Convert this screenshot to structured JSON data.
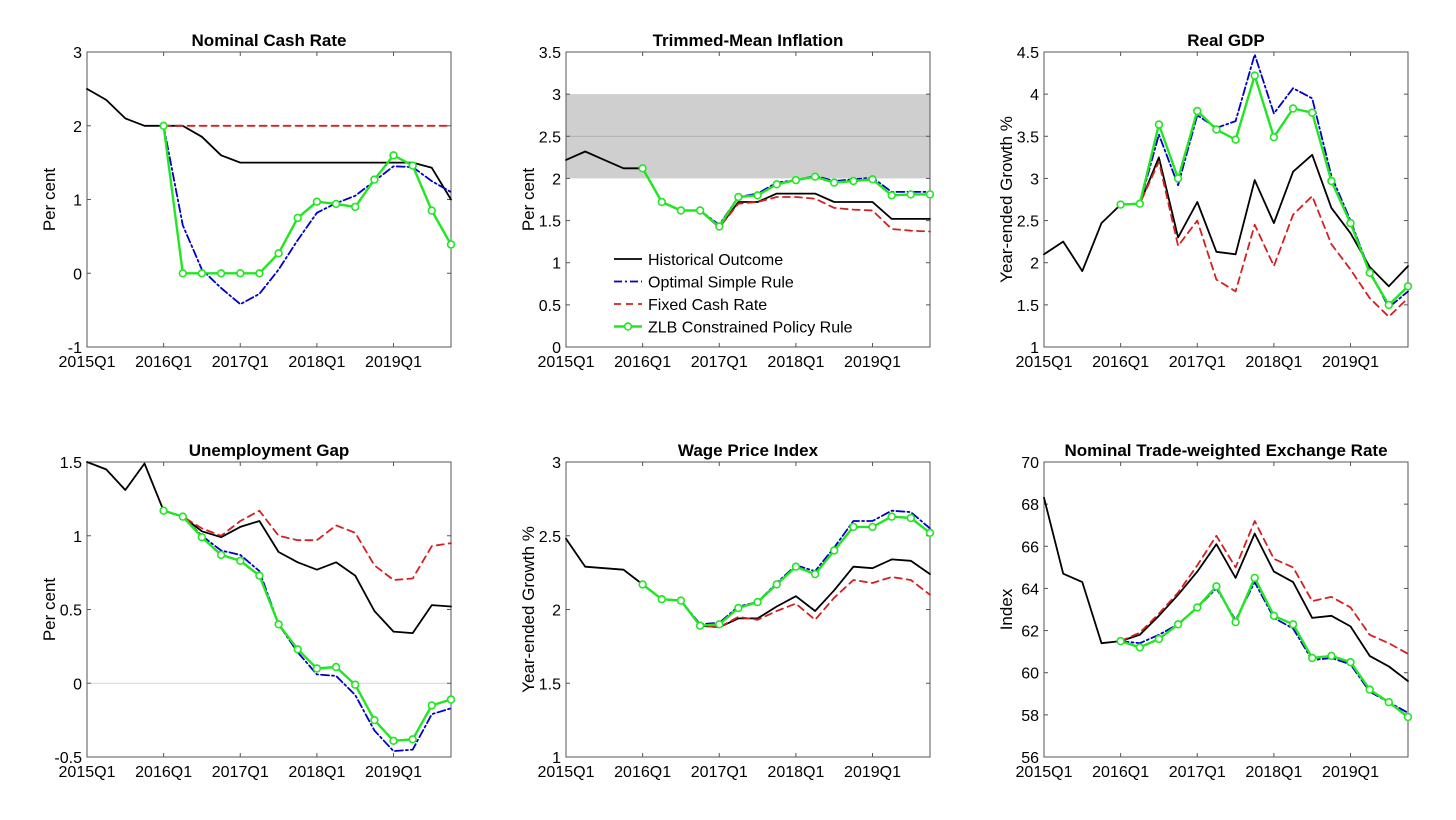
{
  "colors": {
    "historical": "#000000",
    "optimal": "#0000c8",
    "fixed": "#d42020",
    "zlb": "#22e622",
    "band": "#cfcfcf",
    "axis": "#555555"
  },
  "legend": {
    "placement": "inside-panel-2-lower-left",
    "entries": [
      "Historical Outcome",
      "Optimal Simple Rule",
      "Fixed Cash Rate",
      "ZLB Constrained Policy Rule"
    ]
  },
  "x_tick_labels": [
    "2015Q1",
    "2016Q1",
    "2017Q1",
    "2018Q1",
    "2019Q1"
  ],
  "chart_data": [
    {
      "type": "line",
      "title": "Nominal Cash Rate",
      "ylabel": "Per cent",
      "xlim": [
        0,
        19
      ],
      "ylim": [
        -1,
        3
      ],
      "yticks": [
        -1,
        0,
        1,
        2,
        3
      ],
      "ytick_labels": [
        "-1",
        "0",
        "1",
        "2",
        "3"
      ],
      "zero_line": false,
      "series": [
        {
          "key": "historical",
          "x_start": 0,
          "values": [
            2.5,
            2.35,
            2.1,
            2.0,
            2.0,
            2.0,
            1.85,
            1.6,
            1.5,
            1.5,
            1.5,
            1.5,
            1.5,
            1.5,
            1.5,
            1.5,
            1.5,
            1.5,
            1.43,
            1.0
          ]
        },
        {
          "key": "fixed",
          "x_start": 4,
          "values": [
            2,
            2,
            2,
            2,
            2,
            2,
            2,
            2,
            2,
            2,
            2,
            2,
            2,
            2,
            2,
            2
          ]
        },
        {
          "key": "optimal",
          "x_start": 4,
          "values": [
            2.0,
            0.65,
            0.05,
            -0.2,
            -0.42,
            -0.28,
            0.05,
            0.45,
            0.82,
            0.95,
            1.05,
            1.25,
            1.45,
            1.44,
            1.25,
            1.1
          ]
        },
        {
          "key": "zlb",
          "x_start": 4,
          "values": [
            2.0,
            0.0,
            0.0,
            0.0,
            0.0,
            0.0,
            0.27,
            0.75,
            0.97,
            0.94,
            0.9,
            1.27,
            1.6,
            1.46,
            0.85,
            0.39
          ]
        }
      ]
    },
    {
      "type": "line",
      "title": "Trimmed-Mean Inflation",
      "ylabel": "Per cent",
      "xlim": [
        0,
        19
      ],
      "ylim": [
        0,
        3.5
      ],
      "yticks": [
        0,
        0.5,
        1,
        1.5,
        2,
        2.5,
        3,
        3.5
      ],
      "ytick_labels": [
        "0",
        "0.5",
        "1",
        "1.5",
        "2",
        "2.5",
        "3",
        "3.5"
      ],
      "band": [
        2,
        3
      ],
      "band_midline": 2.5,
      "zero_line": false,
      "series": [
        {
          "key": "historical",
          "x_start": 0,
          "values": [
            2.22,
            2.32,
            2.22,
            2.12,
            2.12,
            1.72,
            1.62,
            1.62,
            1.42,
            1.72,
            1.72,
            1.82,
            1.82,
            1.82,
            1.72,
            1.72,
            1.72,
            1.52,
            1.52,
            1.52
          ]
        },
        {
          "key": "fixed",
          "x_start": 4,
          "values": [
            2.12,
            1.72,
            1.62,
            1.62,
            1.42,
            1.7,
            1.72,
            1.78,
            1.78,
            1.76,
            1.65,
            1.63,
            1.62,
            1.4,
            1.38,
            1.37
          ]
        },
        {
          "key": "optimal",
          "x_start": 4,
          "values": [
            2.12,
            1.72,
            1.62,
            1.62,
            1.45,
            1.78,
            1.82,
            1.95,
            1.98,
            2.03,
            1.97,
            1.99,
            2.01,
            1.84,
            1.84,
            1.84
          ]
        },
        {
          "key": "zlb",
          "x_start": 4,
          "values": [
            2.12,
            1.72,
            1.62,
            1.62,
            1.43,
            1.78,
            1.8,
            1.93,
            1.98,
            2.02,
            1.95,
            1.97,
            1.99,
            1.8,
            1.81,
            1.81
          ]
        }
      ]
    },
    {
      "type": "line",
      "title": "Real GDP",
      "ylabel": "Year-ended Growth %",
      "xlim": [
        0,
        19
      ],
      "ylim": [
        1,
        4.5
      ],
      "yticks": [
        1,
        1.5,
        2,
        2.5,
        3,
        3.5,
        4,
        4.5
      ],
      "ytick_labels": [
        "1",
        "1.5",
        "2",
        "2.5",
        "3",
        "3.5",
        "4",
        "4.5"
      ],
      "zero_line": false,
      "series": [
        {
          "key": "historical",
          "x_start": 0,
          "values": [
            2.1,
            2.25,
            1.9,
            2.47,
            2.69,
            2.7,
            3.25,
            2.3,
            2.72,
            2.13,
            2.1,
            2.98,
            2.47,
            3.08,
            3.28,
            2.65,
            2.35,
            1.95,
            1.72,
            1.96
          ]
        },
        {
          "key": "fixed",
          "x_start": 4,
          "values": [
            2.69,
            2.7,
            3.2,
            2.2,
            2.5,
            1.8,
            1.66,
            2.45,
            1.96,
            2.57,
            2.79,
            2.22,
            1.92,
            1.58,
            1.36,
            1.58
          ]
        },
        {
          "key": "optimal",
          "x_start": 4,
          "values": [
            2.69,
            2.7,
            3.52,
            2.92,
            3.75,
            3.6,
            3.68,
            4.47,
            3.77,
            4.07,
            3.95,
            3.03,
            2.5,
            1.9,
            1.47,
            1.66
          ]
        },
        {
          "key": "zlb",
          "x_start": 4,
          "values": [
            2.69,
            2.7,
            3.64,
            3.0,
            3.8,
            3.58,
            3.46,
            4.22,
            3.49,
            3.83,
            3.78,
            2.97,
            2.47,
            1.88,
            1.5,
            1.72
          ]
        }
      ]
    },
    {
      "type": "line",
      "title": "Unemployment Gap",
      "ylabel": "Per cent",
      "xlim": [
        0,
        19
      ],
      "ylim": [
        -0.5,
        1.5
      ],
      "yticks": [
        -0.5,
        0,
        0.5,
        1,
        1.5
      ],
      "ytick_labels": [
        "-0.5",
        "0",
        "0.5",
        "1",
        "1.5"
      ],
      "zero_line": true,
      "series": [
        {
          "key": "historical",
          "x_start": 0,
          "values": [
            1.5,
            1.45,
            1.31,
            1.49,
            1.17,
            1.13,
            1.03,
            0.99,
            1.06,
            1.1,
            0.89,
            0.82,
            0.77,
            0.82,
            0.73,
            0.49,
            0.35,
            0.34,
            0.53,
            0.52
          ]
        },
        {
          "key": "fixed",
          "x_start": 4,
          "values": [
            1.17,
            1.13,
            1.05,
            1.0,
            1.1,
            1.17,
            1.0,
            0.97,
            0.97,
            1.07,
            1.02,
            0.8,
            0.7,
            0.71,
            0.93,
            0.95
          ]
        },
        {
          "key": "optimal",
          "x_start": 4,
          "values": [
            1.17,
            1.13,
            1.0,
            0.9,
            0.87,
            0.76,
            0.4,
            0.21,
            0.06,
            0.05,
            -0.08,
            -0.32,
            -0.46,
            -0.45,
            -0.21,
            -0.17
          ]
        },
        {
          "key": "zlb",
          "x_start": 4,
          "values": [
            1.17,
            1.13,
            0.99,
            0.87,
            0.83,
            0.73,
            0.4,
            0.23,
            0.1,
            0.11,
            -0.01,
            -0.25,
            -0.39,
            -0.38,
            -0.15,
            -0.11
          ]
        }
      ]
    },
    {
      "type": "line",
      "title": "Wage Price Index",
      "ylabel": "Year-ended Growth %",
      "xlim": [
        0,
        19
      ],
      "ylim": [
        1,
        3
      ],
      "yticks": [
        1,
        1.5,
        2,
        2.5,
        3
      ],
      "ytick_labels": [
        "1",
        "1.5",
        "2",
        "2.5",
        "3"
      ],
      "zero_line": false,
      "series": [
        {
          "key": "historical",
          "x_start": 0,
          "values": [
            2.48,
            2.29,
            2.28,
            2.27,
            2.17,
            2.07,
            2.06,
            1.89,
            1.88,
            1.94,
            1.94,
            2.02,
            2.09,
            1.99,
            2.13,
            2.29,
            2.28,
            2.34,
            2.33,
            2.24
          ]
        },
        {
          "key": "fixed",
          "x_start": 4,
          "values": [
            2.17,
            2.07,
            2.06,
            1.89,
            1.88,
            1.95,
            1.93,
            1.99,
            2.04,
            1.93,
            2.08,
            2.2,
            2.18,
            2.22,
            2.2,
            2.1
          ]
        },
        {
          "key": "optimal",
          "x_start": 4,
          "values": [
            2.17,
            2.07,
            2.06,
            1.9,
            1.91,
            2.02,
            2.05,
            2.18,
            2.3,
            2.26,
            2.42,
            2.6,
            2.6,
            2.67,
            2.66,
            2.55
          ]
        },
        {
          "key": "zlb",
          "x_start": 4,
          "values": [
            2.17,
            2.07,
            2.06,
            1.89,
            1.9,
            2.01,
            2.05,
            2.17,
            2.29,
            2.24,
            2.4,
            2.56,
            2.56,
            2.63,
            2.62,
            2.52
          ]
        }
      ]
    },
    {
      "type": "line",
      "title": "Nominal Trade-weighted Exchange Rate",
      "ylabel": "Index",
      "xlim": [
        0,
        19
      ],
      "ylim": [
        56,
        70
      ],
      "yticks": [
        56,
        58,
        60,
        62,
        64,
        66,
        68,
        70
      ],
      "ytick_labels": [
        "56",
        "58",
        "60",
        "62",
        "64",
        "66",
        "68",
        "70"
      ],
      "zero_line": false,
      "series": [
        {
          "key": "historical",
          "x_start": 0,
          "values": [
            68.3,
            64.7,
            64.3,
            61.4,
            61.5,
            61.8,
            62.7,
            63.7,
            64.8,
            66.1,
            64.5,
            66.6,
            64.8,
            64.3,
            62.6,
            62.7,
            62.2,
            60.8,
            60.3,
            59.6
          ]
        },
        {
          "key": "fixed",
          "x_start": 4,
          "values": [
            61.5,
            61.9,
            62.8,
            63.8,
            65.1,
            66.5,
            65.0,
            67.2,
            65.4,
            65.0,
            63.4,
            63.6,
            63.1,
            61.8,
            61.4,
            60.9
          ]
        },
        {
          "key": "optimal",
          "x_start": 4,
          "values": [
            61.5,
            61.4,
            61.8,
            62.3,
            63.1,
            64.0,
            62.5,
            64.3,
            62.6,
            62.1,
            60.6,
            60.7,
            60.4,
            59.1,
            58.6,
            58.1
          ]
        },
        {
          "key": "zlb",
          "x_start": 4,
          "values": [
            61.5,
            61.2,
            61.6,
            62.3,
            63.1,
            64.1,
            62.4,
            64.5,
            62.7,
            62.3,
            60.7,
            60.8,
            60.5,
            59.2,
            58.6,
            57.9
          ]
        }
      ]
    }
  ]
}
